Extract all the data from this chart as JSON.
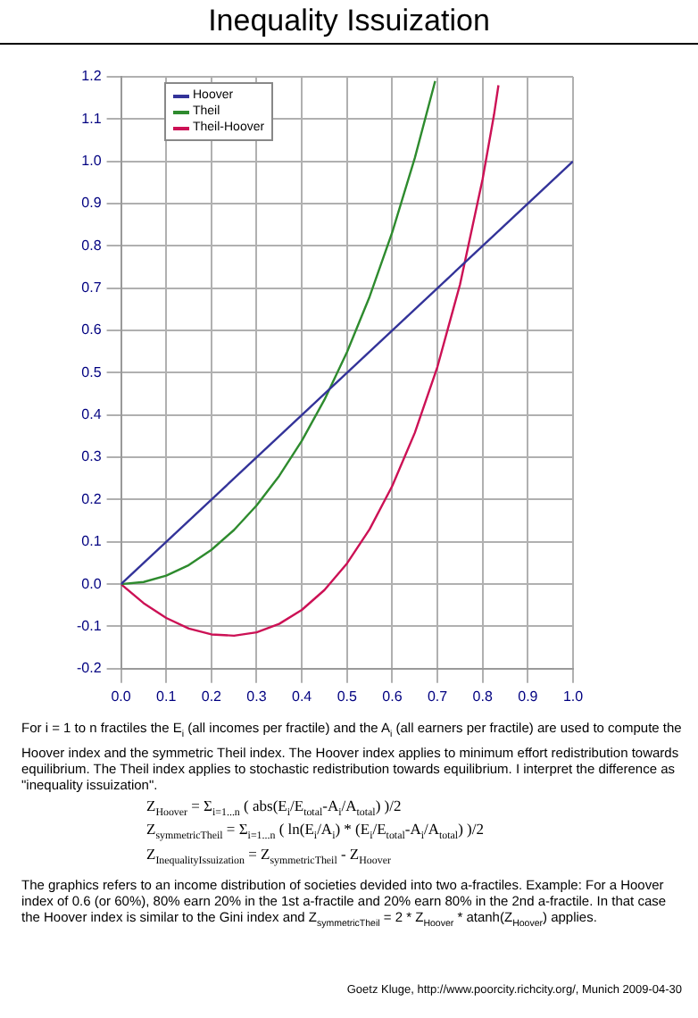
{
  "chart_data": {
    "type": "line",
    "title": "Inequality Issuization",
    "legend": "top left",
    "grid": true,
    "marker": "none",
    "line_style": "solid",
    "xlim": [
      0,
      1
    ],
    "xticks": [
      {
        "value": 0,
        "label": "0.0"
      },
      {
        "value": 0.1,
        "label": "0.1"
      },
      {
        "value": 0.2,
        "label": "0.2"
      },
      {
        "value": 0.3,
        "label": "0.3"
      },
      {
        "value": 0.4,
        "label": "0.4"
      },
      {
        "value": 0.5,
        "label": "0.5"
      },
      {
        "value": 0.6,
        "label": "0.6"
      },
      {
        "value": 0.7,
        "label": "0.7"
      },
      {
        "value": 0.8,
        "label": "0.8"
      },
      {
        "value": 0.9,
        "label": "0.9"
      },
      {
        "value": 1,
        "label": "1.0"
      }
    ],
    "ylim": [
      -0.2,
      1.2
    ],
    "yticks": [
      {
        "value": -0.2,
        "label": "-0.2"
      },
      {
        "value": -0.1,
        "label": "-0.1"
      },
      {
        "value": 0,
        "label": "0.0"
      },
      {
        "value": 0.1,
        "label": "0.1"
      },
      {
        "value": 0.2,
        "label": "0.2"
      },
      {
        "value": 0.3,
        "label": "0.3"
      },
      {
        "value": 0.4,
        "label": "0.4"
      },
      {
        "value": 0.5,
        "label": "0.5"
      },
      {
        "value": 0.6,
        "label": "0.6"
      },
      {
        "value": 0.7,
        "label": "0.7"
      },
      {
        "value": 0.8,
        "label": "0.8"
      },
      {
        "value": 0.9,
        "label": "0.9"
      },
      {
        "value": 1,
        "label": "1.0"
      },
      {
        "value": 1.1,
        "label": "1.1"
      },
      {
        "value": 1.2,
        "label": "1.2"
      }
    ],
    "series": [
      {
        "name": "Hoover",
        "color": "#333399",
        "x": [
          0,
          1
        ],
        "values": [
          0,
          1
        ]
      },
      {
        "name": "Theil",
        "color": "#2e8b2e",
        "x": [
          0,
          0.05,
          0.1,
          0.15,
          0.2,
          0.25,
          0.3,
          0.35,
          0.4,
          0.45,
          0.5,
          0.55,
          0.6,
          0.65,
          0.695
        ],
        "values": [
          0,
          0.005,
          0.02,
          0.045,
          0.081,
          0.128,
          0.186,
          0.256,
          0.339,
          0.436,
          0.549,
          0.68,
          0.832,
          1.008,
          1.19
        ]
      },
      {
        "name": "Theil-Hoover",
        "color": "#cc1155",
        "x": [
          0,
          0.05,
          0.1,
          0.15,
          0.2,
          0.25,
          0.3,
          0.35,
          0.4,
          0.45,
          0.5,
          0.55,
          0.6,
          0.65,
          0.7,
          0.75,
          0.8,
          0.825,
          0.835
        ],
        "values": [
          0,
          -0.045,
          -0.08,
          -0.105,
          -0.119,
          -0.122,
          -0.114,
          -0.094,
          -0.061,
          -0.014,
          0.049,
          0.13,
          0.232,
          0.358,
          0.514,
          0.709,
          0.958,
          1.109,
          1.18
        ]
      }
    ],
    "annotations": [
      "For i = 1 to n fractiles the E$_{i}$ (all incomes per fractile) and the A$_{i}$ (all earners per fractile) are used to compute the Hoover index and the symmetric Theil index. The Hoover index applies to minimum effort redistribution towards equilibrium. The Theil index applies to stochastic redistribution towards equilibrium. I interpret the difference as \"inequality issuization\".",
      "Z$_{Hoover}$ = Σ$_{i=1...n}$ ( abs(E$_{i}$/E$_{total}$-A$_{i}$/A$_{total}$) )/2",
      "Z$_{symmetricTheil}$ = Σ$_{i=1...n}$ ( ln(E$_{i}$/A$_{i}$) * (E$_{i}$/E$_{total}$-A$_{i}$/A$_{total}$) )/2",
      "Z$_{InequalityIssuization}$ = Z$_{symmetricTheil}$ - Z$_{Hoover}$",
      "The graphics refers to an income distribution of societies devided into two a-fractiles. Example: For a Hoover index of 0.6 (or 60%), 80% earn 20% in the 1st a-fractile and 20% earn 80% in the 2nd a-fractile. In that case the Hoover index is similar to the Gini index and Z$_{symmetricTheil}$ = 2 * Z$_{Hoover}$ * atanh(Z$_{Hoover}$) applies.",
      "Goetz Kluge, http://www.poorcity.richcity.org/, Munich 2009-04-30"
    ]
  }
}
